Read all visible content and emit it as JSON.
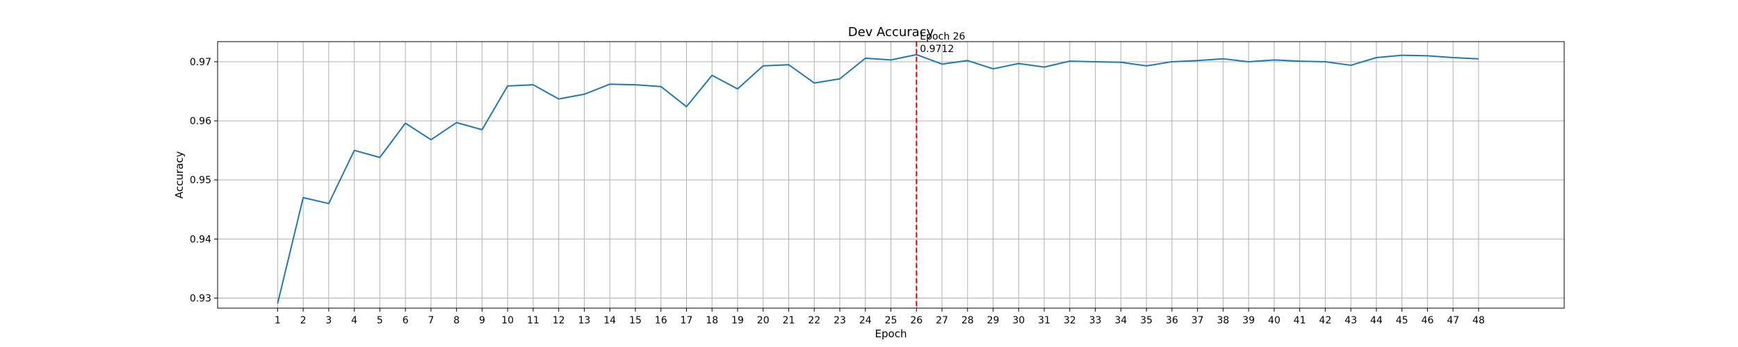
{
  "chart_data": {
    "type": "line",
    "title": "Dev Accuracy",
    "xlabel": "Epoch",
    "ylabel": "Accuracy",
    "x": [
      1,
      2,
      3,
      4,
      5,
      6,
      7,
      8,
      9,
      10,
      11,
      12,
      13,
      14,
      15,
      16,
      17,
      18,
      19,
      20,
      21,
      22,
      23,
      24,
      25,
      26,
      27,
      28,
      29,
      30,
      31,
      32,
      33,
      34,
      35,
      36,
      37,
      38,
      39,
      40,
      41,
      42,
      43,
      44,
      45,
      46,
      47,
      48
    ],
    "series": [
      {
        "color": "#1f77b4",
        "values": [
          0.9291,
          0.947,
          0.946,
          0.955,
          0.9538,
          0.9596,
          0.9568,
          0.9597,
          0.9585,
          0.9659,
          0.9661,
          0.9637,
          0.9645,
          0.9662,
          0.9661,
          0.9658,
          0.9624,
          0.9677,
          0.9654,
          0.9693,
          0.9695,
          0.9664,
          0.9671,
          0.9706,
          0.9703,
          0.9712,
          0.9696,
          0.9702,
          0.9688,
          0.9697,
          0.9691,
          0.9701,
          0.97,
          0.9699,
          0.9693,
          0.97,
          0.9702,
          0.9705,
          0.97,
          0.9703,
          0.9701,
          0.97,
          0.9694,
          0.9707,
          0.9711,
          0.971,
          0.9707,
          0.9705
        ]
      }
    ],
    "xlim": [
      -1.35,
      51.35
    ],
    "ylim": [
      0.9283,
      0.9734
    ],
    "yticks": [
      0.93,
      0.94,
      0.95,
      0.96,
      0.97
    ],
    "ytick_labels": [
      "0.93",
      "0.94",
      "0.95",
      "0.96",
      "0.97"
    ],
    "grid": true,
    "marker_line": {
      "x": 26,
      "color": "#ff0000",
      "label_line1": "Epoch 26",
      "label_line2": "0.9712"
    }
  }
}
